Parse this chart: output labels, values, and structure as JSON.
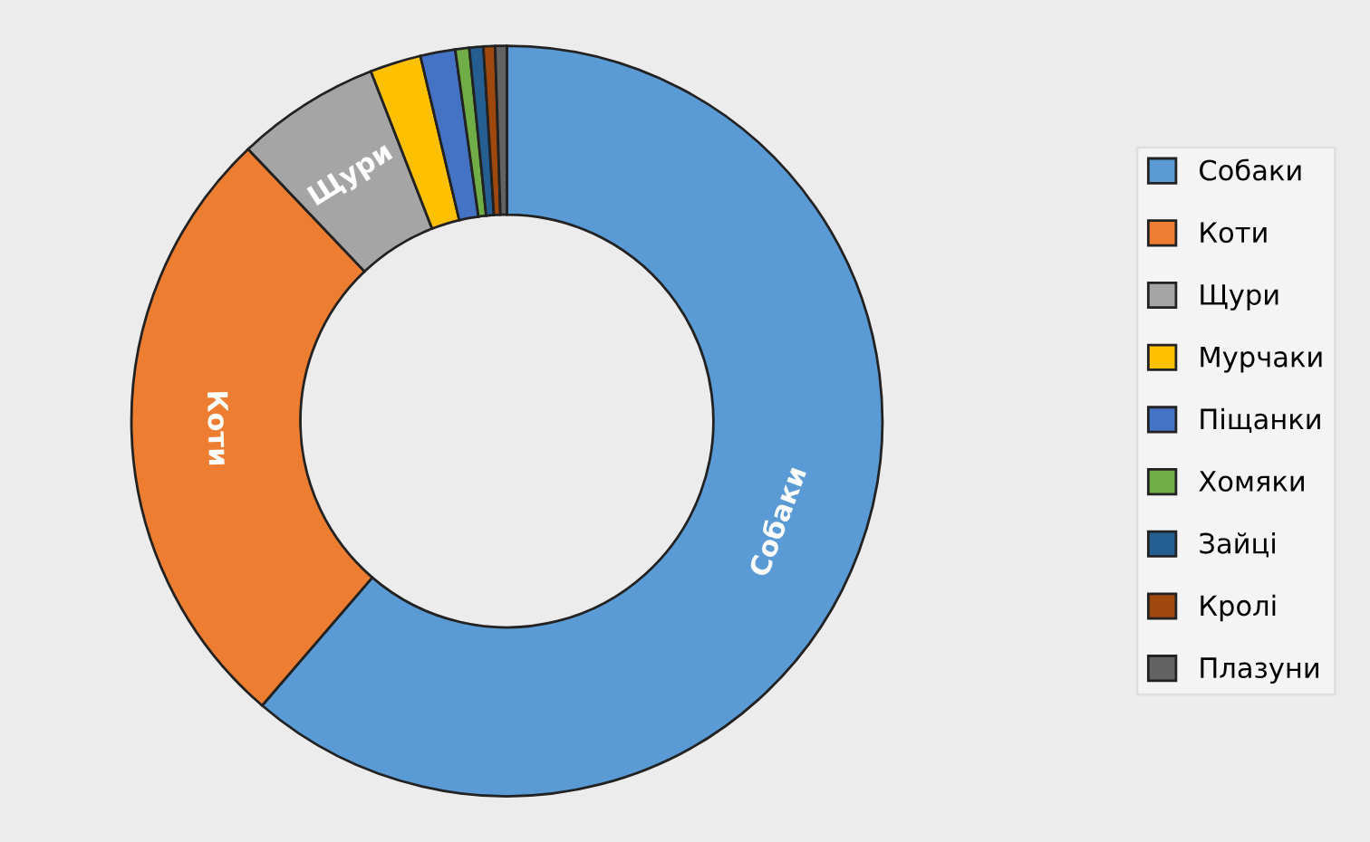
{
  "chart_data": {
    "type": "donut",
    "categories": [
      "Собаки",
      "Коти",
      "Щури",
      "Мурчаки",
      "Піщанки",
      "Хомяки",
      "Зайці",
      "Кролі",
      "Плазуни"
    ],
    "values": [
      61.3,
      26.6,
      6.2,
      2.2,
      1.5,
      0.6,
      0.6,
      0.5,
      0.5
    ],
    "colors": [
      "#5b9bd5",
      "#ed7d31",
      "#a5a5a5",
      "#ffc000",
      "#4472c4",
      "#70ad47",
      "#255e91",
      "#9e480e",
      "#636363"
    ],
    "annotations": [
      {
        "text": "Собаки",
        "x": "Собаки"
      },
      {
        "text": "Коти",
        "x": "Коти"
      },
      {
        "text": "Щури",
        "x": "Щури"
      }
    ],
    "legend": "right"
  }
}
